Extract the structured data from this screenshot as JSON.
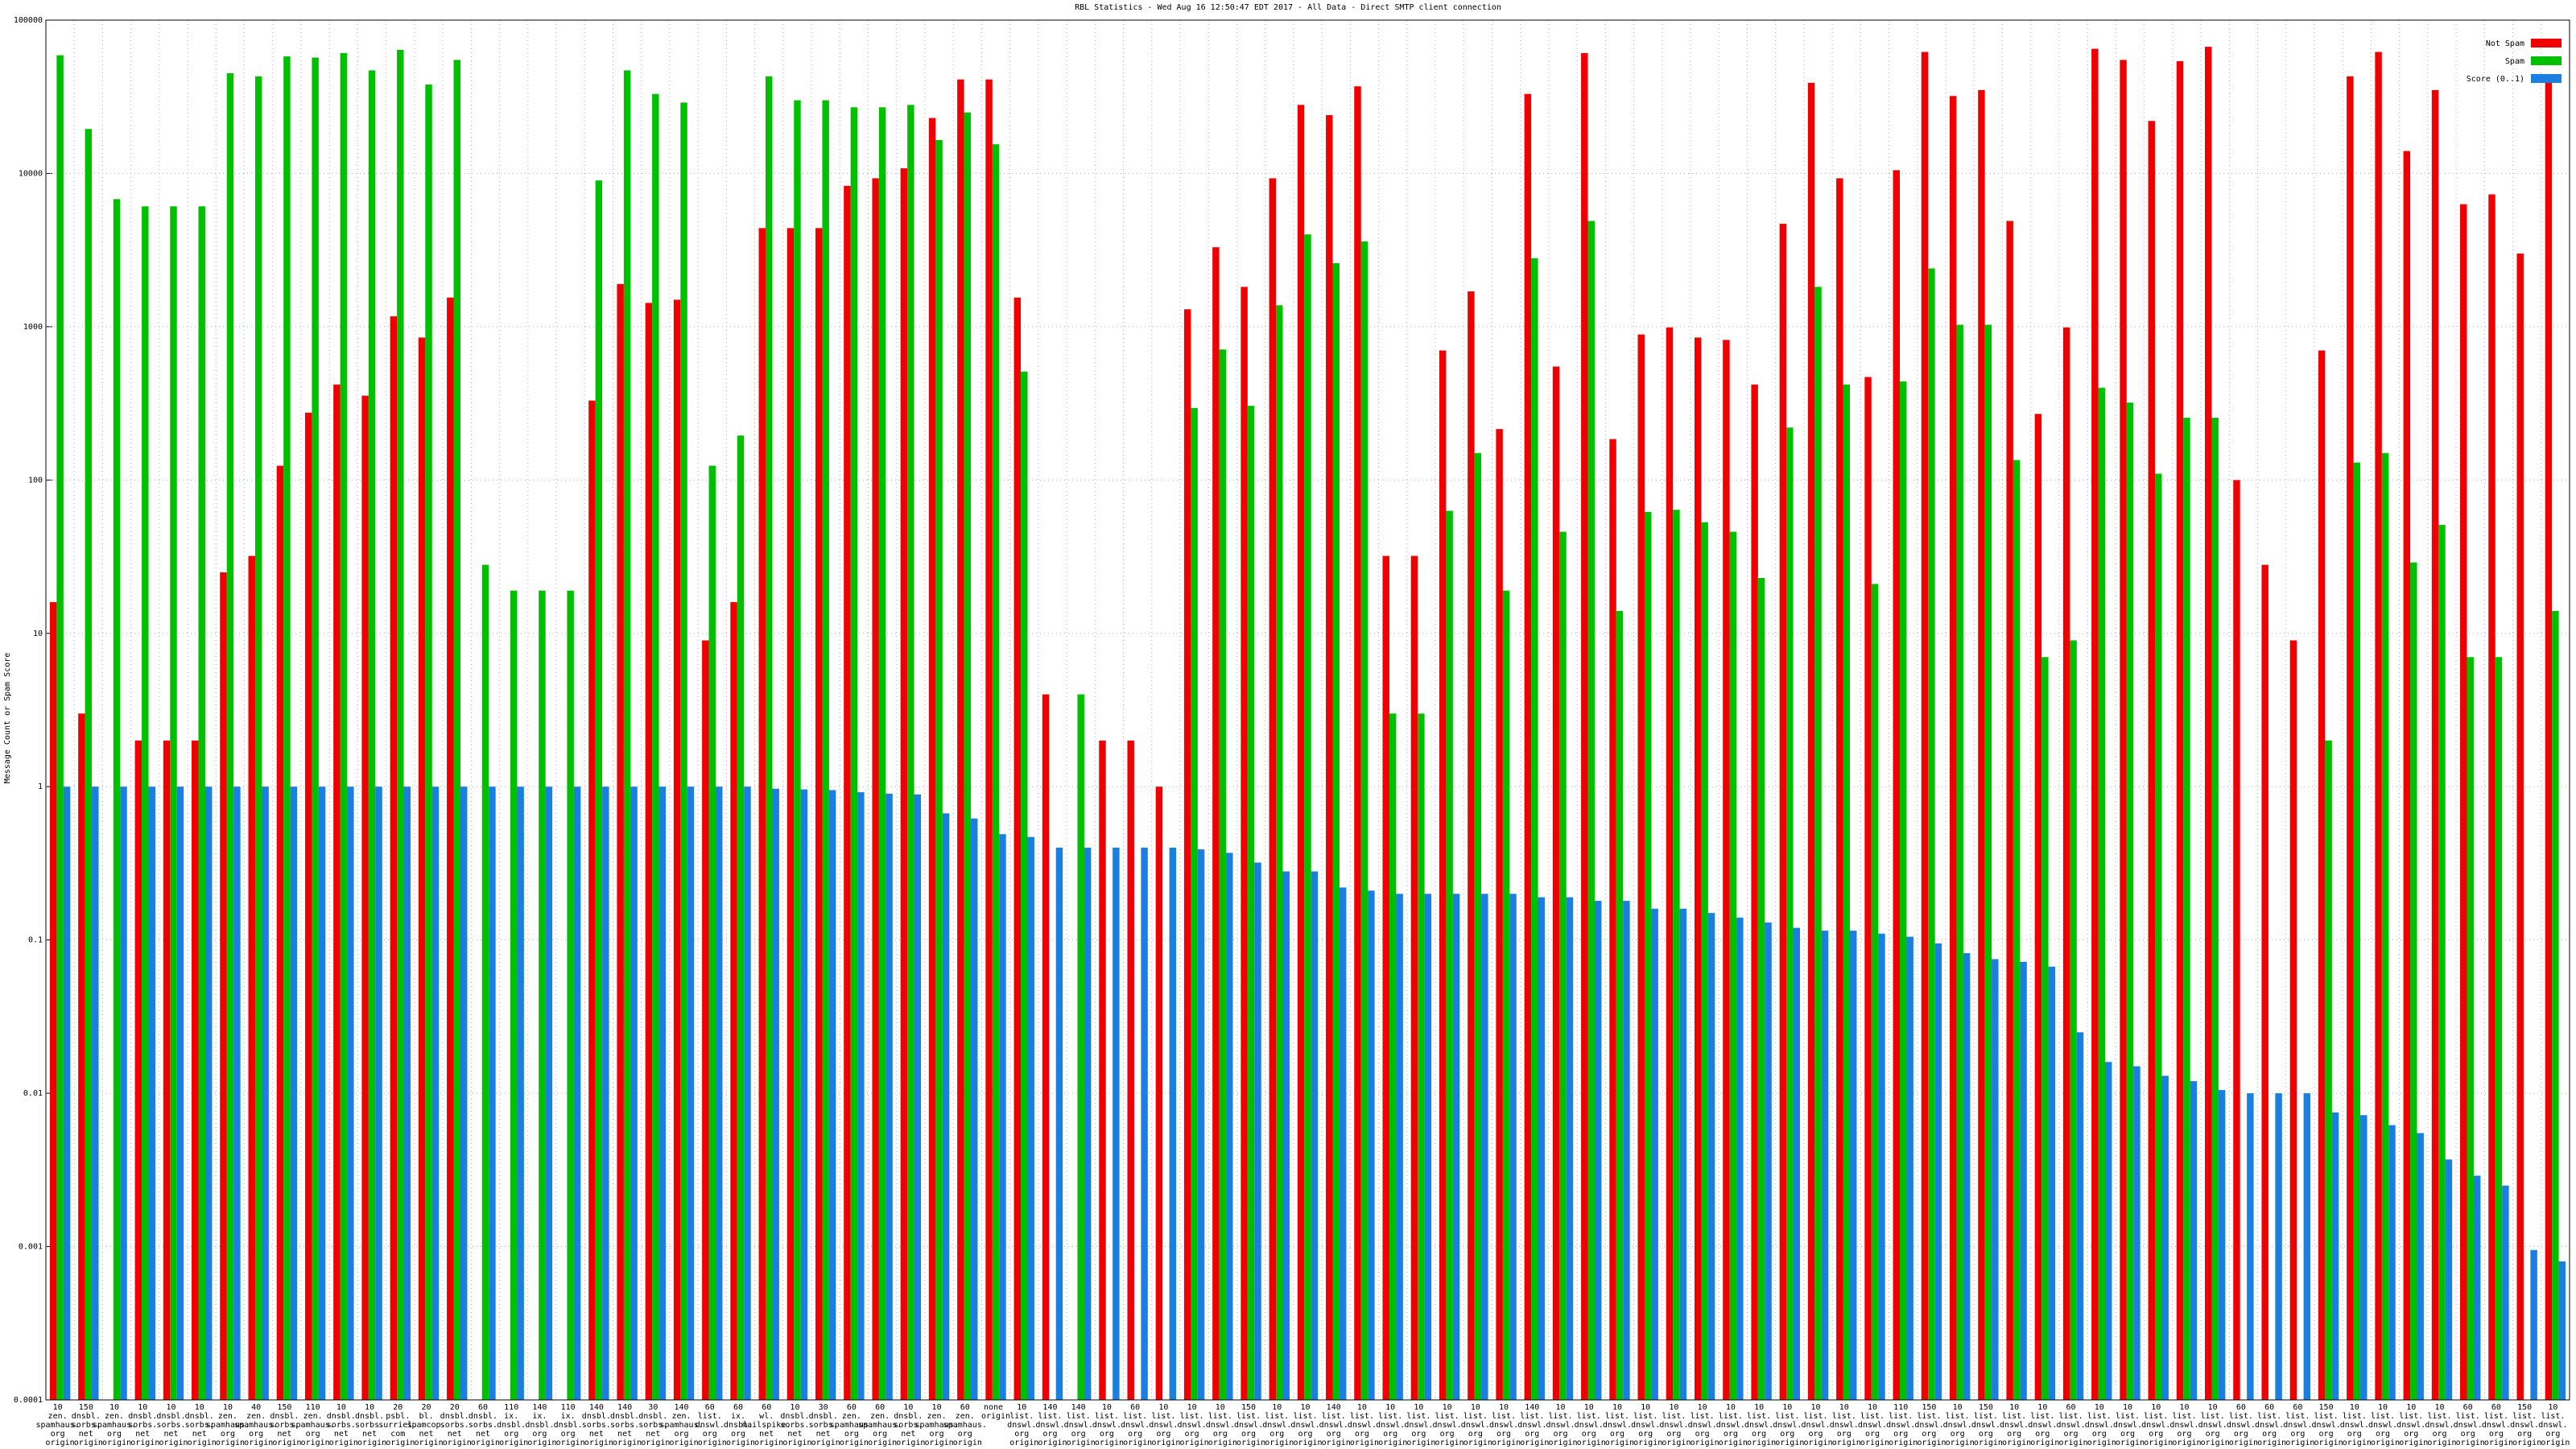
{
  "chart_data": {
    "type": "bar",
    "title": "RBL Statistics - Wed Aug 16 12:50:47 EDT 2017 - All Data - Direct SMTP client connection",
    "y_label": "Message Count or Spam Score",
    "log_scale": true,
    "grid": true,
    "legend": "top-right",
    "ylim": [
      0.0001,
      100000
    ],
    "yticks": [
      0.0001,
      0.001,
      0.01,
      0.1,
      1,
      10,
      100,
      1000,
      10000,
      100000
    ],
    "categories": [
      "10 zen. spamhaus. org origin",
      "150 dnsbl. sorbs. net origin",
      "10 zen. spamhaus. org origin",
      "10 dnsbl. sorbs. net origin",
      "10 dnsbl. sorbs. net origin",
      "10 dnsbl. sorbs. net origin",
      "10 zen. spamhaus. org origin",
      "40 zen. spamhaus. org origin",
      "150 dnsbl. sorbs. net origin",
      "110 zen. spamhaus. org origin",
      "10 dnsbl. sorbs. net origin",
      "10 dnsbl. sorbs. net origin",
      "20 psbl. surriel. com origin",
      "20 bl. spamcop. net origin",
      "20 dnsbl. sorbs. net origin",
      "60 dnsbl. sorbs. net origin",
      "110 ix. dnsbl. org origin",
      "140 ix. dnsbl. org origin",
      "110 ix. dnsbl. org origin",
      "140 dnsbl. sorbs. net origin",
      "140 dnsbl. sorbs. net origin",
      "30 dnsbl. sorbs. net origin",
      "140 zen. spamhaus. org origin",
      "60 list. dnswl. org origin",
      "60 ix. dnsbl. org origin",
      "60 wl. mailspike. net origin",
      "10 dnsbl. sorbs. net origin",
      "30 dnsbl. sorbs. net origin",
      "60 zen. spamhaus. org origin",
      "60 zen. spamhaus. org origin",
      "10 dnsbl. sorbs. net origin",
      "10 zen. spamhaus. org origin",
      "60 zen. spamhaus. org origin",
      "none origin",
      "10 list. dnswl. org origin",
      "140 list. dnswl. org origin",
      "140 list. dnswl. org origin",
      "10 list. dnswl. org origin",
      "60 list. dnswl. org origin",
      "10 list. dnswl. org origin",
      "10 list. dnswl. org origin",
      "10 list. dnswl. org origin",
      "150 list. dnswl. org origin",
      "10 list. dnswl. org origin",
      "10 list. dnswl. org origin",
      "140 list. dnswl. org origin",
      "10 list. dnswl. org origin",
      "10 list. dnswl. org origin",
      "10 list. dnswl. org origin",
      "10 list. dnswl. org origin",
      "10 list. dnswl. org origin",
      "10 list. dnswl. org origin",
      "140 list. dnswl. org origin",
      "10 list. dnswl. org origin",
      "10 list. dnswl. org origin",
      "10 list. dnswl. org origin",
      "10 list. dnswl. org origin",
      "10 list. dnswl. org origin",
      "10 list. dnswl. org origin",
      "10 list. dnswl. org origin",
      "10 list. dnswl. org origin",
      "10 list. dnswl. org origin",
      "10 list. dnswl. org origin",
      "10 list. dnswl. org origin",
      "10 list. dnswl. org origin",
      "110 list. dnswl. org origin",
      "150 list. dnswl. org origin",
      "10 list. dnswl. org origin",
      "150 list. dnswl. org origin",
      "10 list. dnswl. org origin",
      "10 list. dnswl. org origin",
      "60 list. dnswl. org origin",
      "10 list. dnswl. org origin",
      "10 list. dnswl. org origin",
      "10 list. dnswl. org origin",
      "10 list. dnswl. org origin",
      "10 list. dnswl. org origin",
      "60 list. dnswl. org origin",
      "60 list. dnswl. org origin",
      "60 list. dnswl. org origin",
      "150 list. dnswl. org origin",
      "10 list. dnswl. org origin",
      "10 list. dnswl. org origin",
      "10 list. dnswl. org origin",
      "10 list. dnswl. org origin",
      "60 list. dnswl. org origin",
      "60 list. dnswl. org origin",
      "150 list. dnswl. org origin",
      "10 list. dnswl. org origin"
    ],
    "series": [
      {
        "name": "Not Spam",
        "color": "#f00000",
        "values": [
          16,
          3,
          null,
          2,
          2,
          2,
          25,
          32,
          124,
          275,
          420,
          355,
          1170,
          850,
          1550,
          null,
          null,
          null,
          null,
          330,
          1900,
          1430,
          1500,
          9,
          16,
          4400,
          4400,
          4400,
          8300,
          9300,
          10800,
          23000,
          41000,
          41000,
          1550,
          4,
          null,
          2,
          2,
          1,
          1300,
          3300,
          1820,
          9300,
          28000,
          24000,
          37000,
          32,
          32,
          700,
          1700,
          215,
          33000,
          550,
          61000,
          185,
          890,
          990,
          850,
          820,
          420,
          4700,
          39000,
          9300,
          470,
          10500,
          62000,
          32000,
          35000,
          4900,
          270,
          990,
          65000,
          55000,
          22000,
          54000,
          67000,
          100,
          28,
          9,
          700,
          43000,
          62000,
          14000,
          35000,
          6300,
          7300,
          3000,
          40000
        ]
      },
      {
        "name": "Spam",
        "color": "#00c000",
        "values": [
          59000,
          19500,
          6800,
          6100,
          6100,
          6100,
          45000,
          43000,
          58000,
          57000,
          61000,
          47000,
          64000,
          38000,
          55000,
          28,
          19,
          19,
          19,
          9000,
          47000,
          33000,
          29000,
          124,
          195,
          43000,
          30000,
          30000,
          27000,
          27000,
          28000,
          16500,
          25000,
          15500,
          510,
          null,
          4,
          null,
          null,
          null,
          295,
          710,
          305,
          1380,
          4000,
          2600,
          3600,
          3,
          3,
          63,
          150,
          19,
          2800,
          46,
          4900,
          14,
          62,
          64,
          53,
          46,
          23,
          220,
          1820,
          420,
          21,
          440,
          2400,
          1030,
          1030,
          135,
          7,
          9,
          400,
          320,
          110,
          255,
          255,
          null,
          null,
          null,
          2,
          130,
          150,
          29,
          51,
          7,
          7,
          null,
          14
        ]
      },
      {
        "name": "Score (0..1)",
        "color": "#1a7fe0",
        "values": [
          1,
          1,
          1,
          1,
          1,
          1,
          1,
          1,
          1,
          1,
          1,
          1,
          1,
          1,
          1,
          1,
          1,
          1,
          1,
          1,
          1,
          1,
          1,
          1,
          1,
          0.97,
          0.96,
          0.95,
          0.92,
          0.9,
          0.89,
          0.67,
          0.62,
          0.49,
          0.47,
          0.4,
          0.4,
          0.4,
          0.4,
          0.4,
          0.39,
          0.37,
          0.32,
          0.28,
          0.28,
          0.22,
          0.21,
          0.2,
          0.2,
          0.2,
          0.2,
          0.2,
          0.19,
          0.19,
          0.18,
          0.18,
          0.16,
          0.16,
          0.15,
          0.14,
          0.13,
          0.12,
          0.115,
          0.115,
          0.11,
          0.105,
          0.095,
          0.082,
          0.075,
          0.072,
          0.067,
          0.025,
          0.016,
          0.015,
          0.013,
          0.012,
          0.0105,
          0.01,
          0.01,
          0.01,
          0.0075,
          0.0072,
          0.0062,
          0.0055,
          0.0037,
          0.0029,
          0.0025,
          0.00095,
          0.0008
        ]
      }
    ]
  }
}
